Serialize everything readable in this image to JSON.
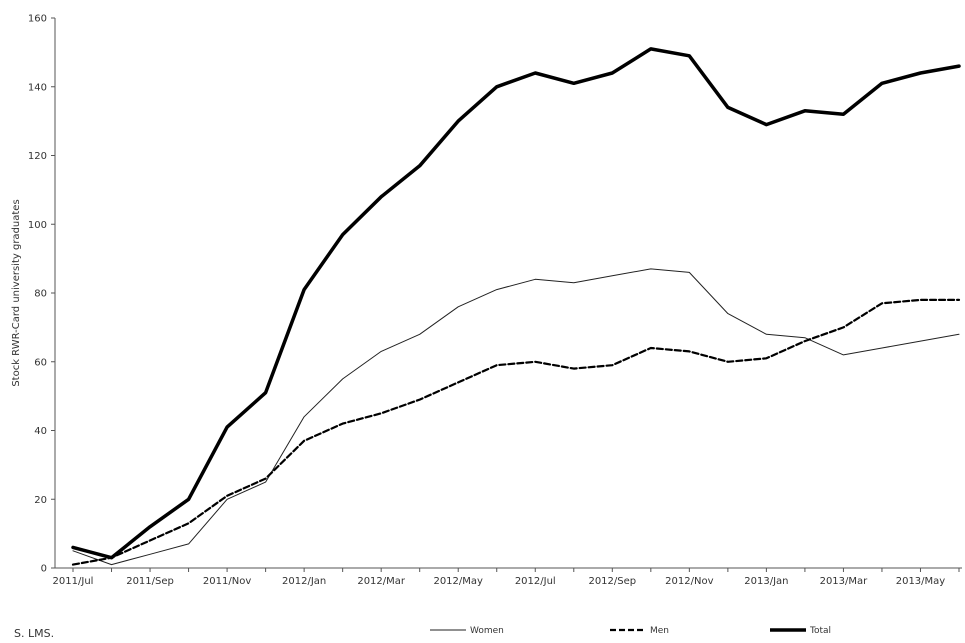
{
  "chart_data": {
    "type": "line",
    "title": "",
    "xlabel": "",
    "ylabel": "Stock RWR-Card university graduates",
    "ylim": [
      0,
      160
    ],
    "yticks": [
      0,
      20,
      40,
      60,
      80,
      100,
      120,
      140,
      160
    ],
    "x": [
      "2011/Jul",
      "2011/Aug",
      "2011/Sep",
      "2011/Oct",
      "2011/Nov",
      "2011/Dec",
      "2012/Jan",
      "2012/Feb",
      "2012/Mar",
      "2012/Apr",
      "2012/May",
      "2012/Jun",
      "2012/Jul",
      "2012/Aug",
      "2012/Sep",
      "2012/Oct",
      "2012/Nov",
      "2012/Dec",
      "2013/Jan",
      "2013/Feb",
      "2013/Mar",
      "2013/Apr",
      "2013/May",
      "2013/Jun"
    ],
    "xtick_labels": [
      "2011/Jul",
      "2011/Sep",
      "2011/Nov",
      "2012/Jan",
      "2012/Mar",
      "2012/May",
      "2012/Jul",
      "2012/Sep",
      "2012/Nov",
      "2013/Jan",
      "2013/Mar",
      "2013/May"
    ],
    "grid": false,
    "legend_position": "bottom",
    "series": [
      {
        "name": "Women",
        "color": "#222222",
        "style": "thin-solid",
        "values": [
          5,
          1,
          4,
          7,
          20,
          25,
          44,
          55,
          63,
          68,
          76,
          81,
          84,
          83,
          85,
          87,
          86,
          74,
          68,
          67,
          62,
          64,
          66,
          68
        ]
      },
      {
        "name": "Men",
        "color": "#000000",
        "style": "dashed",
        "values": [
          1,
          3,
          8,
          13,
          21,
          26,
          37,
          42,
          45,
          49,
          54,
          59,
          60,
          58,
          59,
          64,
          63,
          60,
          61,
          66,
          70,
          77,
          78,
          78
        ]
      },
      {
        "name": "Total",
        "color": "#000000",
        "style": "thick-solid",
        "values": [
          6,
          3,
          12,
          20,
          41,
          51,
          81,
          97,
          108,
          117,
          130,
          140,
          144,
          141,
          144,
          151,
          149,
          134,
          129,
          133,
          132,
          141,
          144,
          146
        ]
      }
    ]
  },
  "footer": {
    "source_note": "S. LMS."
  }
}
